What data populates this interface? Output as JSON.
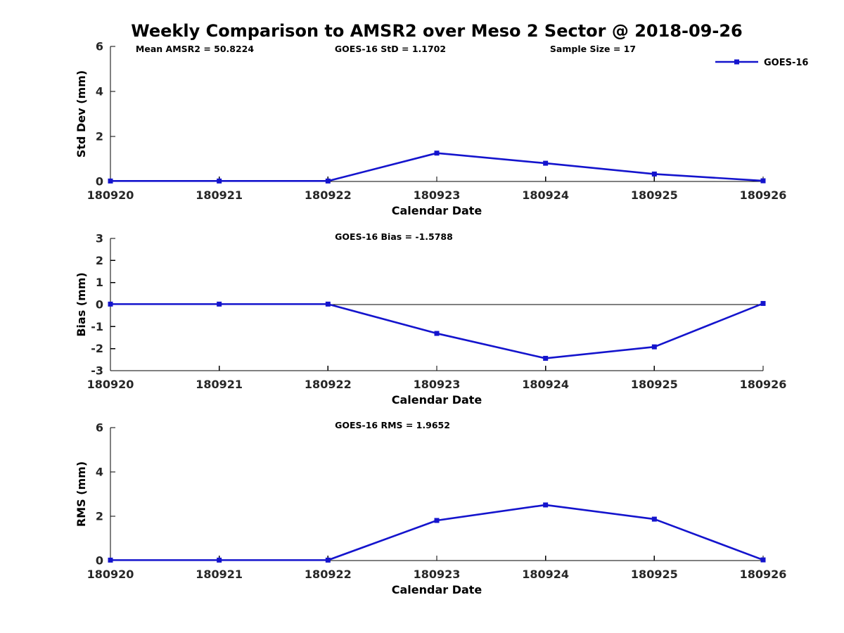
{
  "title": "Weekly Comparison to AMSR2 over Meso 2 Sector @ 2018-09-26",
  "legend": {
    "label": "GOES-16",
    "position": "top-right"
  },
  "colors": {
    "line": "#1414cd",
    "marker": "#1414cd",
    "axis": "#000000",
    "tick_label": "#262626",
    "text": "#000000"
  },
  "categories": [
    "180920",
    "180921",
    "180922",
    "180923",
    "180924",
    "180925",
    "180926"
  ],
  "chart_data": [
    {
      "type": "line",
      "title": "",
      "xlabel": "Calendar Date",
      "ylabel": "Std Dev (mm)",
      "ylim": [
        0,
        6
      ],
      "yticks": [
        0,
        2,
        4,
        6
      ],
      "grid": false,
      "zero_line": false,
      "show_legend": true,
      "series": [
        {
          "name": "GOES-16",
          "values": [
            0.02,
            0.02,
            0.02,
            1.26,
            0.81,
            0.33,
            0.03
          ]
        }
      ],
      "annotations": [
        {
          "text": "Mean AMSR2 = 50.8224",
          "x": 277,
          "y": 74
        },
        {
          "text": "GOES-16 StD = 1.1702",
          "x": 555,
          "y": 74
        },
        {
          "text": "Sample Size = 17",
          "x": 843,
          "y": 74
        }
      ]
    },
    {
      "type": "line",
      "title": "",
      "xlabel": "Calendar Date",
      "ylabel": "Bias (mm)",
      "ylim": [
        -3,
        3
      ],
      "yticks": [
        -3,
        -2,
        -1,
        0,
        1,
        2,
        3
      ],
      "grid": false,
      "zero_line": true,
      "show_legend": false,
      "series": [
        {
          "name": "GOES-16",
          "values": [
            0.02,
            0.02,
            0.02,
            -1.31,
            -2.44,
            -1.92,
            0.05
          ]
        }
      ],
      "annotations": [
        {
          "text": "GOES-16 Bias  = -1.5788",
          "x": 560,
          "y": 341
        }
      ]
    },
    {
      "type": "line",
      "title": "",
      "xlabel": "Calendar Date",
      "ylabel": "RMS (mm)",
      "ylim": [
        0,
        6
      ],
      "yticks": [
        0,
        2,
        4,
        6
      ],
      "grid": false,
      "zero_line": false,
      "show_legend": false,
      "series": [
        {
          "name": "GOES-16",
          "values": [
            0.02,
            0.02,
            0.02,
            1.81,
            2.51,
            1.87,
            0.03
          ]
        }
      ],
      "annotations": [
        {
          "text": "GOES-16 RMS = 1.9652",
          "x": 558,
          "y": 609
        }
      ]
    }
  ]
}
